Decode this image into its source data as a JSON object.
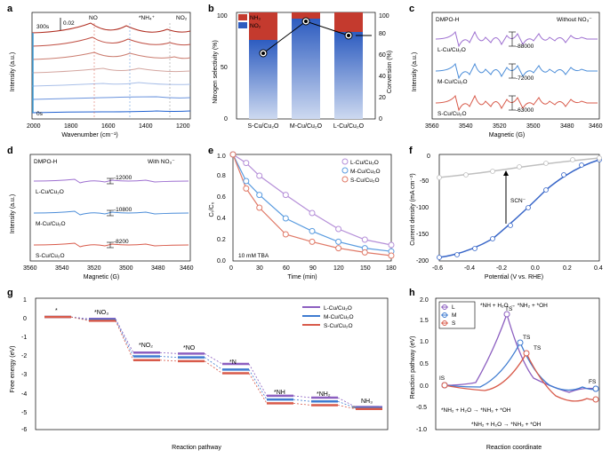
{
  "panels": {
    "a": {
      "label": "a",
      "xlabel": "Wavenumber (cm⁻¹)",
      "ylabel": "Intensity (a.u.)",
      "xticks": [
        2000,
        1800,
        1600,
        1400,
        1200
      ],
      "scale_bar": "0.02",
      "annotations": {
        "time_top": "300s",
        "time_bot": "0s",
        "NO": "NO",
        "NH4": "*NH₄⁺",
        "NO2": "NO₂"
      },
      "line_colors": [
        "#1f60d0",
        "#6a93dd",
        "#a9bfe8",
        "#d4a6a0",
        "#cb7d70",
        "#c05044",
        "#b02d20"
      ]
    },
    "b": {
      "label": "b",
      "ylabel": "Nitrogen selectivity (%)",
      "ylabel2": "Conversion (%)",
      "categories": [
        "S-Cu/Cu₂O",
        "M-Cu/Cu₂O",
        "L-Cu/Cu₂O"
      ],
      "nh3_pct": [
        74,
        94,
        82
      ],
      "no2_pct": [
        26,
        6,
        18
      ],
      "conversion": [
        62,
        92,
        78
      ],
      "colors": {
        "nh3": "#3d6fd6",
        "no2": "#c43a2e",
        "bar_grad_top": "#2d5cc0",
        "bar_grad_bot": "#b9ceee",
        "bar_red": "#c43a2e"
      },
      "yrange": [
        0,
        100
      ],
      "y2range": [
        0,
        100
      ]
    },
    "c": {
      "label": "c",
      "title": "DMPO-H",
      "subtitle": "Without NO₃⁻",
      "samples": [
        "L-Cu/Cu₂O",
        "M-Cu/Cu₂O",
        "S-Cu/Cu₂O"
      ],
      "intensities": [
        "-88000",
        "-72000",
        "-63000"
      ],
      "colors": [
        "#9d6fd0",
        "#4a8cd8",
        "#d85a4a"
      ],
      "xlabel": "Magnetic (G)",
      "xticks": [
        3560,
        3540,
        3520,
        3500,
        3480,
        3460
      ],
      "ylabel": "Intensity (a.u.)"
    },
    "d": {
      "label": "d",
      "title": "DMPO-H",
      "subtitle": "With NO₃⁻",
      "samples": [
        "L-Cu/Cu₂O",
        "M-Cu/Cu₂O",
        "S-Cu/Cu₂O"
      ],
      "intensities": [
        "-12000",
        "-10800",
        "-8200"
      ],
      "colors": [
        "#9d6fd0",
        "#4a8cd8",
        "#d85a4a"
      ],
      "xlabel": "Magnetic (G)",
      "xticks": [
        3560,
        3540,
        3520,
        3500,
        3480,
        3460
      ],
      "ylabel": "Intensity (a.u.)"
    },
    "e": {
      "label": "e",
      "xlabel": "Time (min)",
      "ylabel": "Cₜ/C₀",
      "legend": [
        "L-Cu/Cu₂O",
        "M-Cu/Cu₂O",
        "S-Cu/Cu₂O"
      ],
      "colors": [
        "#b58fd8",
        "#5a9ce0",
        "#e07a68"
      ],
      "note": "10 mM TBA",
      "x": [
        0,
        15,
        30,
        60,
        90,
        120,
        150,
        180
      ],
      "seriesL": [
        1.0,
        0.92,
        0.8,
        0.62,
        0.45,
        0.3,
        0.2,
        0.15
      ],
      "seriesM": [
        1.0,
        0.75,
        0.62,
        0.4,
        0.28,
        0.18,
        0.12,
        0.09
      ],
      "seriesS": [
        1.0,
        0.68,
        0.5,
        0.25,
        0.18,
        0.12,
        0.08,
        0.05
      ],
      "xrange": [
        0,
        180
      ],
      "yrange": [
        0,
        1.0
      ]
    },
    "f": {
      "label": "f",
      "xlabel": "Potential (V vs. RHE)",
      "ylabel": "Current density (mA cm⁻²)",
      "annotation": "SCN⁻",
      "colors": {
        "before": "#3866c8",
        "after": "#bfbfbf"
      },
      "xrange": [
        -0.6,
        0.4
      ],
      "yrange": [
        -200,
        0
      ],
      "xticks": [
        -0.6,
        -0.4,
        -0.2,
        0.0,
        0.2,
        0.4
      ],
      "yticks": [
        -200,
        -150,
        -100,
        -50,
        0
      ]
    },
    "g": {
      "label": "g",
      "xlabel": "Reaction pathway",
      "ylabel": "Free energy (eV)",
      "steps": [
        "*",
        "*NO₃",
        "*NO₂",
        "*NO",
        "*N",
        "*NH",
        "*NH₂",
        "NH₃"
      ],
      "legend": [
        "L-Cu/Cu₂O",
        "M-Cu/Cu₂O",
        "S-Cu/Cu₂O"
      ],
      "colors": [
        "#8c5fc0",
        "#3e7bd0",
        "#d85a4a"
      ],
      "L": [
        0,
        -0.1,
        -1.9,
        -1.95,
        -2.5,
        -4.2,
        -4.3,
        -4.8
      ],
      "M": [
        0,
        -0.15,
        -2.1,
        -2.15,
        -2.8,
        -4.4,
        -4.5,
        -4.85
      ],
      "S": [
        0,
        -0.2,
        -2.3,
        -2.35,
        -3.0,
        -4.6,
        -4.7,
        -4.9
      ],
      "yrange": [
        -6,
        1
      ]
    },
    "h": {
      "label": "h",
      "xlabel": "Reaction coordinate",
      "ylabel": "Reaction pathway (eV)",
      "legend": [
        "L",
        "M",
        "S"
      ],
      "colors": [
        "#8c5fc0",
        "#3e7bd0",
        "#d85a4a"
      ],
      "yrange": [
        -1.0,
        2.0
      ],
      "yticks": [
        -1.0,
        -0.5,
        0.0,
        0.5,
        1.0,
        1.5,
        2.0
      ],
      "labels": {
        "IS": "IS",
        "TS": "TS",
        "FS": "FS"
      },
      "captions": [
        "*NH + H₂O → *NH₂ + *OH",
        "*NH₂ + H₂O → *NH₃ + *OH",
        "*NH₂ + H₂O → *NH₃ + *OH"
      ]
    }
  }
}
